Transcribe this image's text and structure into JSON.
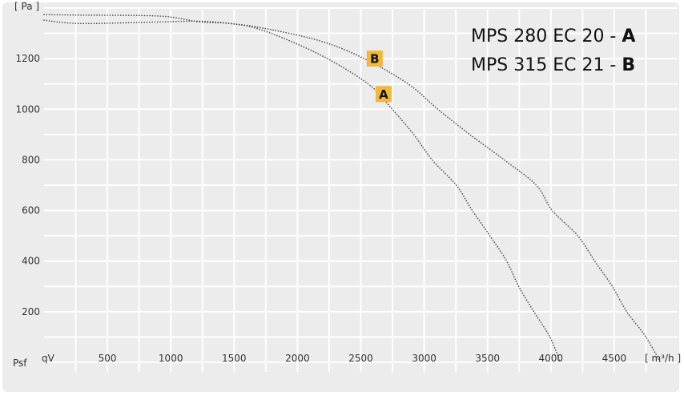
{
  "chart_data": {
    "type": "line",
    "title": "",
    "xlabel_symbol": "qV",
    "xlabel_unit": "[ m³/h ]",
    "ylabel_symbol": "Psf",
    "ylabel_unit": "[ Pa ]",
    "xlim": [
      0,
      5000
    ],
    "ylim": [
      0,
      1400
    ],
    "x_ticks": [
      500,
      1000,
      1500,
      2000,
      2500,
      3000,
      3500,
      4000,
      4500
    ],
    "y_ticks": [
      200,
      400,
      600,
      800,
      1000,
      1200
    ],
    "grid": true,
    "line_style": "dotted",
    "colors": {
      "background": "#ececec",
      "grid": "#ffffff",
      "curve": "#4a4a4a",
      "marker": "#f0b93a"
    },
    "legend": [
      {
        "text": "MPS 280 EC 20 - ",
        "key": "A"
      },
      {
        "text": "MPS 315 EC 21 - ",
        "key": "B"
      }
    ],
    "series": [
      {
        "name": "A",
        "x": [
          0,
          284,
          916,
          1232,
          1484,
          1737,
          2179,
          2558,
          2748,
          2918,
          3063,
          3253,
          3380,
          3519,
          3651,
          3746,
          3866,
          3992,
          4074
        ],
        "y": [
          1374,
          1372,
          1368,
          1345,
          1338,
          1310,
          1215,
          1100,
          1000,
          900,
          800,
          700,
          600,
          500,
          400,
          300,
          200,
          100,
          0
        ]
      },
      {
        "name": "B",
        "x": [
          0,
          284,
          916,
          1232,
          1484,
          1737,
          2179,
          2527,
          2874,
          3108,
          3361,
          3632,
          3885,
          4011,
          4213,
          4346,
          4485,
          4599,
          4750,
          4864
        ],
        "y": [
          1352,
          1339,
          1345,
          1348,
          1338,
          1320,
          1270,
          1200,
          1100,
          1000,
          900,
          800,
          700,
          600,
          500,
          400,
          300,
          200,
          100,
          0
        ]
      }
    ],
    "markers": [
      {
        "label": "B",
        "x": 2610,
        "y": 1200
      },
      {
        "label": "A",
        "x": 2680,
        "y": 1060
      }
    ]
  }
}
